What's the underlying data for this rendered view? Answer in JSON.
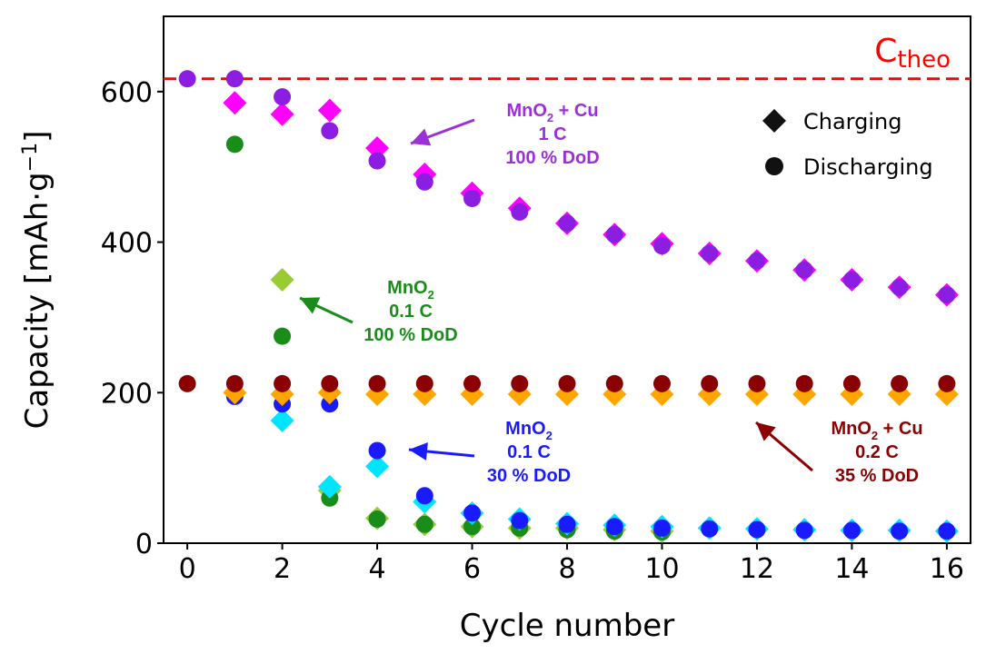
{
  "chart_data": {
    "type": "scatter",
    "xlabel": "Cycle number",
    "ylabel": "Capacity [mAh·g",
    "ylabel_sup": "−1",
    "ylabel_tail": "]",
    "xlim": [
      -0.5,
      16.5
    ],
    "ylim": [
      0,
      700
    ],
    "xticks": [
      0,
      2,
      4,
      6,
      8,
      10,
      12,
      14,
      16
    ],
    "yticks": [
      0,
      200,
      400,
      600
    ],
    "grid": false,
    "legend_position": "top-right",
    "legend": [
      {
        "marker": "diamond",
        "label": "Charging"
      },
      {
        "marker": "circle",
        "label": "Discharging"
      }
    ],
    "reference_line": {
      "value": 617,
      "color": "#ff0000",
      "label_main": "C",
      "label_sub": "theo"
    },
    "series": [
      {
        "name": "",
        "kind": "charging",
        "marker": "diamond",
        "color": "#ff00ff",
        "x": [
          1,
          2,
          3,
          4,
          5,
          6,
          7,
          8,
          9,
          10,
          11,
          12,
          13,
          14,
          15,
          16
        ],
        "y": [
          585,
          570,
          575,
          525,
          490,
          465,
          445,
          425,
          410,
          398,
          385,
          375,
          363,
          350,
          340,
          330
        ]
      },
      {
        "name": "",
        "kind": "discharging",
        "marker": "circle",
        "color": "#8b1ee0",
        "x": [
          0,
          1,
          2,
          3,
          4,
          5,
          6,
          7,
          8,
          9,
          10,
          11,
          12,
          13,
          14,
          15,
          16
        ],
        "y": [
          617,
          617,
          593,
          548,
          508,
          480,
          458,
          440,
          425,
          410,
          395,
          385,
          375,
          363,
          350,
          340,
          330
        ]
      },
      {
        "name": "",
        "kind": "charging",
        "marker": "diamond",
        "color": "#99cc33",
        "x": [
          2,
          3,
          4,
          5,
          6,
          7,
          8,
          9,
          10
        ],
        "y": [
          350,
          70,
          33,
          25,
          22,
          20,
          20,
          18,
          16
        ]
      },
      {
        "name": "",
        "kind": "discharging",
        "marker": "circle",
        "color": "#1a8c1a",
        "x": [
          1,
          2,
          3,
          4,
          5,
          6,
          7,
          8,
          9,
          10
        ],
        "y": [
          530,
          275,
          60,
          32,
          25,
          22,
          20,
          18,
          16,
          15
        ]
      },
      {
        "name": "",
        "kind": "charging",
        "marker": "diamond",
        "color": "#00e5ff",
        "x": [
          2,
          3,
          4,
          5,
          6,
          7,
          8,
          9,
          10,
          11,
          12,
          13,
          14,
          15,
          16
        ],
        "y": [
          163,
          75,
          102,
          55,
          40,
          32,
          26,
          24,
          22,
          20,
          19,
          18,
          17,
          17,
          16
        ]
      },
      {
        "name": "",
        "kind": "discharging",
        "marker": "circle",
        "color": "#1a1aff",
        "x": [
          1,
          2,
          3,
          4,
          5,
          6,
          7,
          8,
          9,
          10,
          11,
          12,
          13,
          14,
          15,
          16
        ],
        "y": [
          195,
          185,
          185,
          123,
          63,
          40,
          30,
          25,
          22,
          20,
          19,
          18,
          17,
          17,
          16,
          16
        ]
      },
      {
        "name": "",
        "kind": "charging",
        "marker": "diamond",
        "color": "#ffa500",
        "x": [
          1,
          2,
          3,
          4,
          5,
          6,
          7,
          8,
          9,
          10,
          11,
          12,
          13,
          14,
          15,
          16
        ],
        "y": [
          200,
          198,
          200,
          198,
          198,
          198,
          198,
          198,
          198,
          198,
          198,
          198,
          198,
          198,
          198,
          198
        ]
      },
      {
        "name": "",
        "kind": "discharging",
        "marker": "circle",
        "color": "#8b0000",
        "x": [
          0,
          1,
          2,
          3,
          4,
          5,
          6,
          7,
          8,
          9,
          10,
          11,
          12,
          13,
          14,
          15,
          16
        ],
        "y": [
          212,
          212,
          212,
          212,
          212,
          212,
          212,
          212,
          212,
          212,
          212,
          212,
          212,
          212,
          212,
          212,
          212
        ]
      }
    ],
    "annotations": [
      {
        "color": "#9b30d9",
        "lines": [
          [
            "MnO",
            "2",
            " + Cu"
          ],
          [
            "1 C"
          ],
          [
            "100 % DoD"
          ]
        ],
        "anchor_x": 4.4,
        "anchor_y": 533
      },
      {
        "color": "#1a8c1a",
        "lines": [
          [
            "MnO",
            "2",
            ""
          ],
          [
            "0.1 C"
          ],
          [
            "100 % DoD"
          ]
        ],
        "anchor_x": 2.2,
        "anchor_y": 318
      },
      {
        "color": "#1a1aff",
        "lines": [
          [
            "MnO",
            "2",
            ""
          ],
          [
            "0.1 C"
          ],
          [
            "30 % DoD"
          ]
        ],
        "anchor_x": 4.4,
        "anchor_y": 123
      },
      {
        "color": "#8b0000",
        "lines": [
          [
            "MnO",
            "2",
            " + Cu"
          ],
          [
            "0.2 C"
          ],
          [
            "35 % DoD"
          ]
        ],
        "anchor_x": 12.2,
        "anchor_y": 155
      }
    ]
  }
}
